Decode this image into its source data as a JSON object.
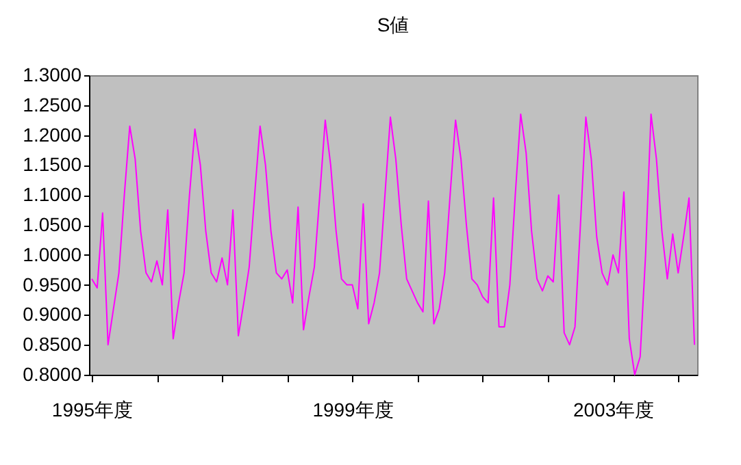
{
  "chart_data": {
    "type": "line",
    "title": "S値",
    "categories": [
      "1995年度",
      null,
      null,
      null,
      null,
      null,
      null,
      null,
      null,
      null,
      null,
      null,
      null,
      null,
      null,
      null,
      null,
      null,
      null,
      null,
      null,
      null,
      null,
      null,
      null,
      null,
      null,
      null,
      null,
      null,
      null,
      null,
      null,
      null,
      null,
      null,
      null,
      null,
      null,
      null,
      null,
      null,
      null,
      null,
      null,
      null,
      null,
      null,
      "1999年度",
      null,
      null,
      null,
      null,
      null,
      null,
      null,
      null,
      null,
      null,
      null,
      null,
      null,
      null,
      null,
      null,
      null,
      null,
      null,
      null,
      null,
      null,
      null,
      null,
      null,
      null,
      null,
      null,
      null,
      null,
      null,
      null,
      null,
      null,
      null,
      null,
      null,
      null,
      null,
      null,
      null,
      null,
      null,
      null,
      null,
      null,
      null,
      "2003年度",
      null,
      null,
      null,
      null,
      null,
      null,
      null,
      null,
      null,
      null,
      null,
      null,
      null,
      null,
      null
    ],
    "series": [
      {
        "color": "#ff00ff",
        "values": [
          0.96,
          0.945,
          1.07,
          0.85,
          0.91,
          0.97,
          1.1,
          1.215,
          1.16,
          1.04,
          0.97,
          0.955,
          0.99,
          0.95,
          1.075,
          0.86,
          0.92,
          0.97,
          1.1,
          1.21,
          1.15,
          1.04,
          0.97,
          0.955,
          0.995,
          0.95,
          1.075,
          0.865,
          0.92,
          0.98,
          1.1,
          1.215,
          1.15,
          1.04,
          0.97,
          0.96,
          0.975,
          0.92,
          1.08,
          0.875,
          0.93,
          0.98,
          1.1,
          1.225,
          1.15,
          1.04,
          0.96,
          0.95,
          0.95,
          0.91,
          1.085,
          0.885,
          0.92,
          0.97,
          1.1,
          1.23,
          1.16,
          1.05,
          0.96,
          0.94,
          0.92,
          0.905,
          1.09,
          0.885,
          0.91,
          0.97,
          1.1,
          1.225,
          1.16,
          1.05,
          0.96,
          0.95,
          0.93,
          0.92,
          1.095,
          0.88,
          0.88,
          0.95,
          1.1,
          1.235,
          1.17,
          1.04,
          0.96,
          0.94,
          0.965,
          0.955,
          1.1,
          0.87,
          0.85,
          0.88,
          1.05,
          1.23,
          1.16,
          1.03,
          0.97,
          0.95,
          1.0,
          0.97,
          1.105,
          0.86,
          0.8,
          0.83,
          1.0,
          1.235,
          1.16,
          1.04,
          0.96,
          1.035,
          0.97,
          1.03,
          1.095,
          0.85
        ]
      }
    ],
    "ylim": [
      0.8,
      1.3
    ],
    "yticks": [
      {
        "value": 0.8,
        "label": "0.8000"
      },
      {
        "value": 0.85,
        "label": "0.8500"
      },
      {
        "value": 0.9,
        "label": "0.9000"
      },
      {
        "value": 0.95,
        "label": "0.9500"
      },
      {
        "value": 1.0,
        "label": "1.0000"
      },
      {
        "value": 1.05,
        "label": "1.0500"
      },
      {
        "value": 1.1,
        "label": "1.1000"
      },
      {
        "value": 1.15,
        "label": "1.1500"
      },
      {
        "value": 1.2,
        "label": "1.2000"
      },
      {
        "value": 1.25,
        "label": "1.2500"
      },
      {
        "value": 1.3,
        "label": "1.3000"
      }
    ],
    "grid": false,
    "marker": "none",
    "line_style": "solid"
  }
}
